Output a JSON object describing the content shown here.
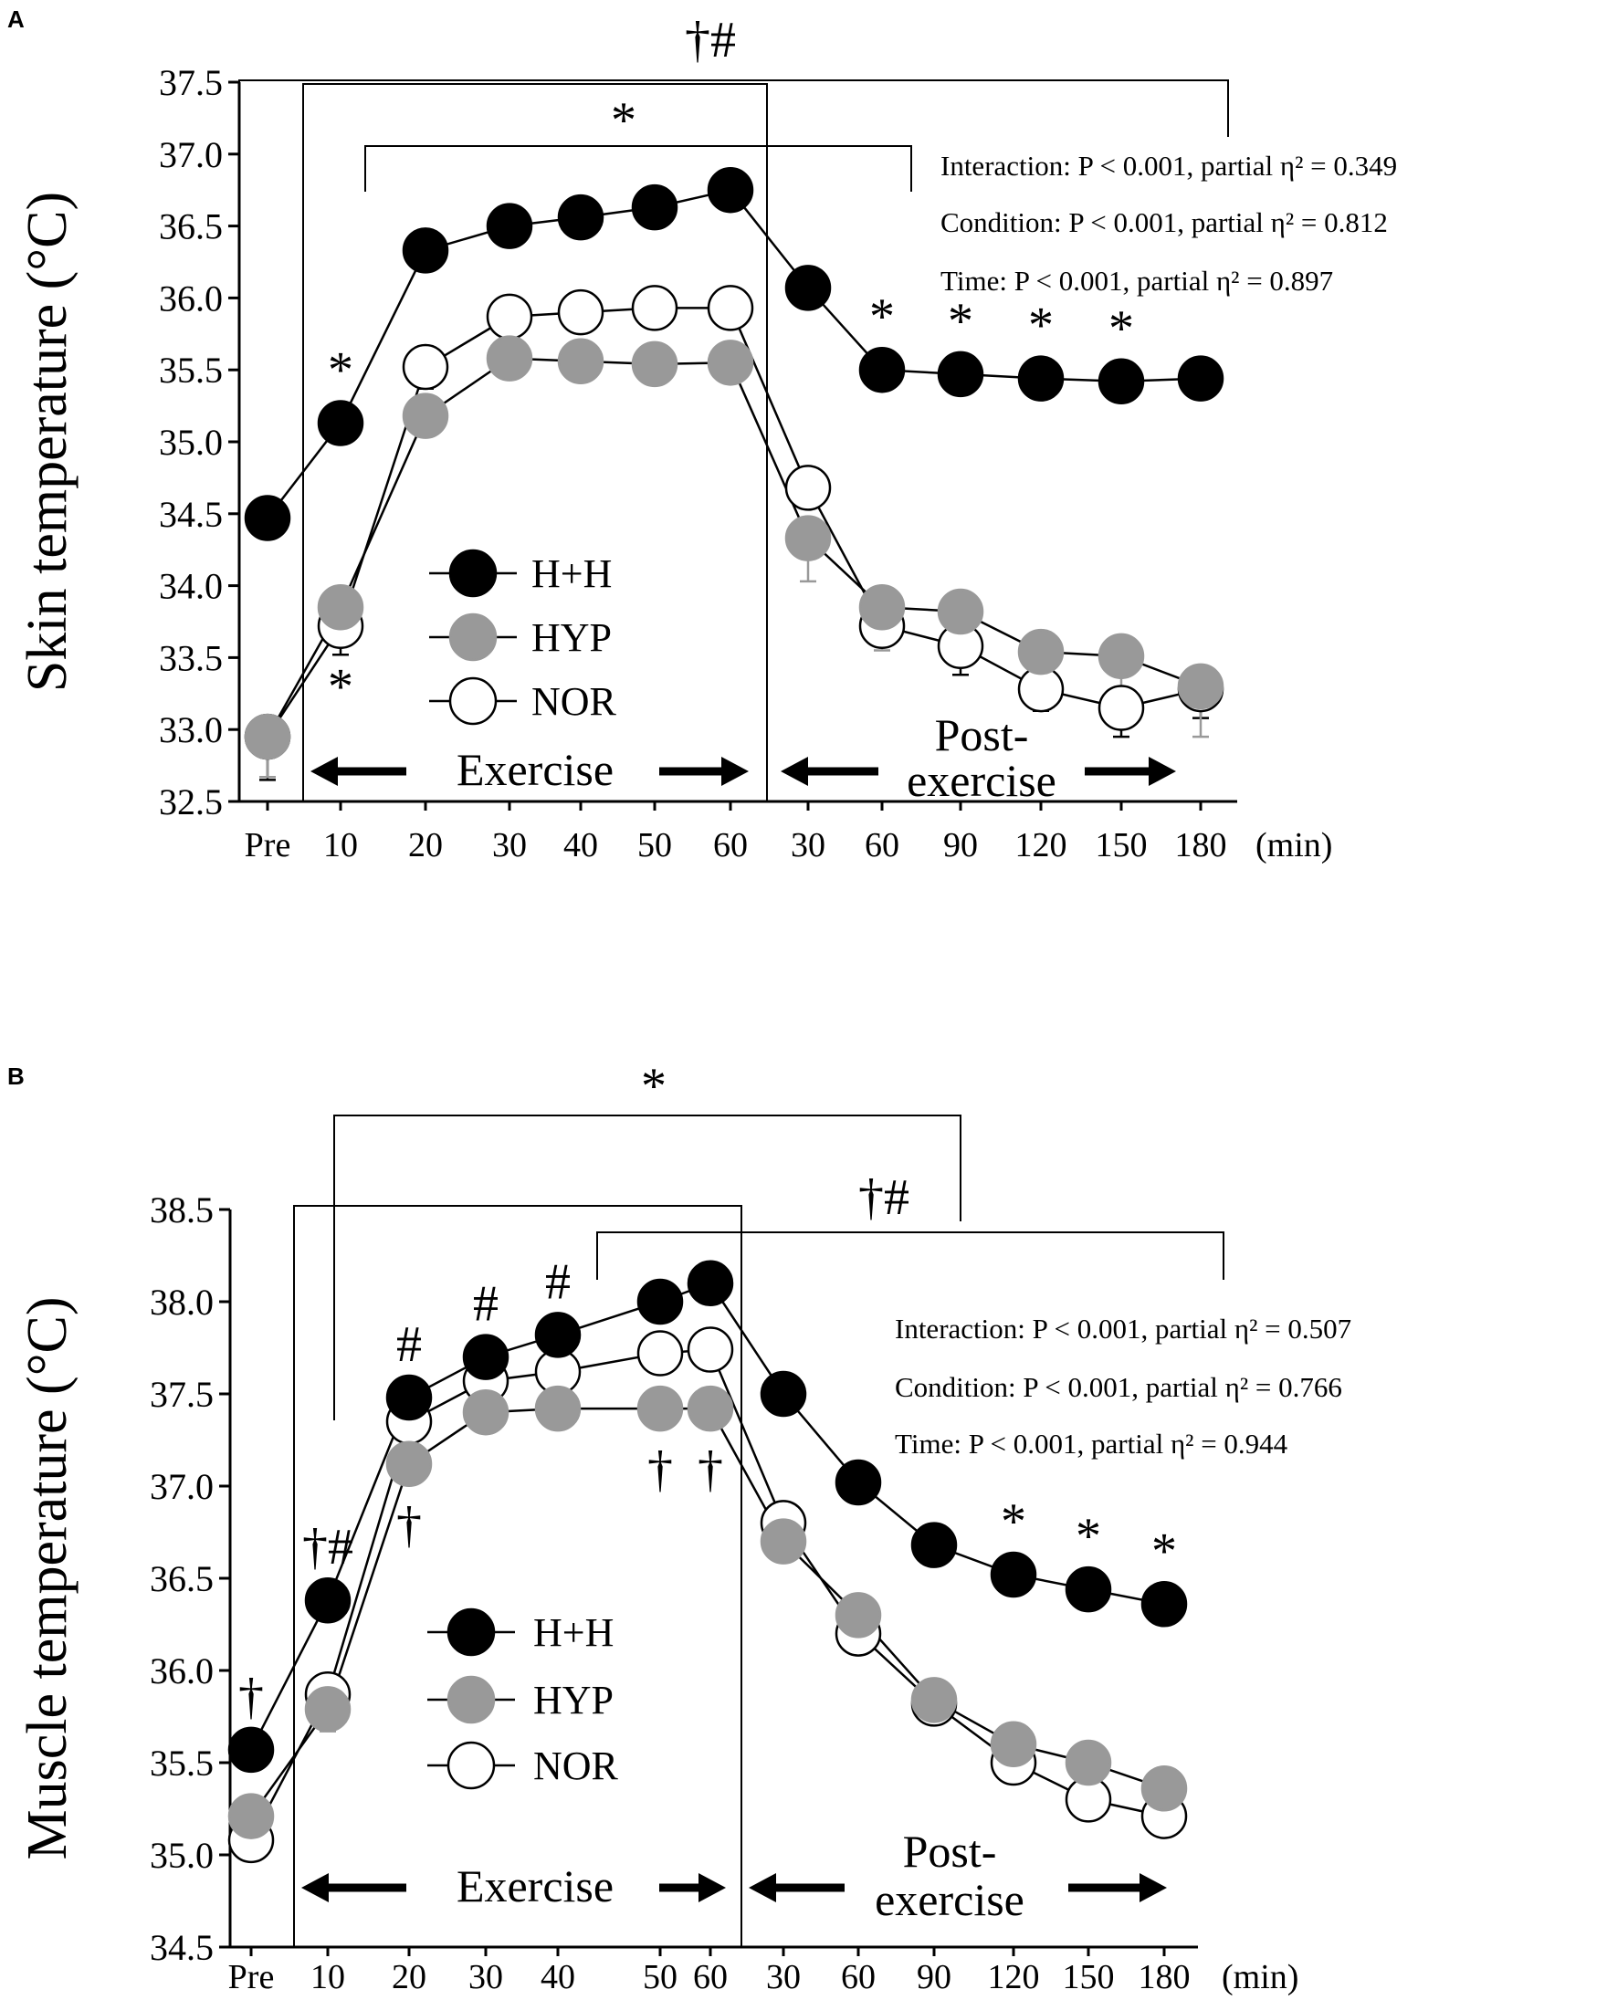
{
  "chart_data": [
    {
      "panel": "A",
      "type": "line",
      "ylabel": "Skin temperature (°C)",
      "xunit": "(min)",
      "ylim": [
        32.5,
        37.5
      ],
      "yticks": [
        "32.5",
        "33.0",
        "33.5",
        "34.0",
        "34.5",
        "35.0",
        "35.5",
        "36.0",
        "36.5",
        "37.0",
        "37.5"
      ],
      "categories": [
        "Pre",
        "10",
        "20",
        "30",
        "40",
        "50",
        "60",
        "30",
        "60",
        "90",
        "120",
        "150",
        "180"
      ],
      "series": [
        {
          "name": "H+H",
          "color": "#000000",
          "values": [
            34.47,
            35.13,
            36.33,
            36.5,
            36.56,
            36.63,
            36.75,
            36.07,
            35.5,
            35.47,
            35.44,
            35.42,
            35.44
          ],
          "err": [
            0,
            0,
            0,
            0,
            0,
            0,
            0.1,
            0.1,
            0.1,
            0,
            0,
            0,
            0
          ]
        },
        {
          "name": "NOR",
          "color": "#ffffff",
          "values": [
            32.95,
            33.72,
            35.52,
            35.87,
            35.9,
            35.93,
            35.93,
            34.68,
            33.72,
            33.58,
            33.28,
            33.15,
            33.28
          ],
          "err": [
            0.3,
            0.2,
            0.15,
            0.1,
            0.1,
            0.1,
            0.1,
            0,
            0,
            0.2,
            0.15,
            0.2,
            0.2
          ]
        },
        {
          "name": "HYP",
          "color": "#999999",
          "values": [
            32.95,
            33.85,
            35.18,
            35.58,
            35.56,
            35.54,
            35.55,
            34.33,
            33.85,
            33.82,
            33.54,
            33.51,
            33.3
          ],
          "err": [
            0.28,
            0,
            0,
            0,
            0,
            0,
            0,
            0.3,
            0.3,
            0.3,
            0.25,
            0.3,
            0.35
          ]
        }
      ],
      "legend": [
        "H+H",
        "HYP",
        "NOR"
      ],
      "phases": {
        "exercise": "Exercise",
        "post": "Post-\nexercise"
      },
      "stats": [
        "Interaction: P < 0.001, partial η² = 0.349",
        "Condition: P < 0.001, partial η² = 0.812",
        "Time: P < 0.001, partial η² = 0.897"
      ],
      "annotations": {
        "bracket_outer": "†#",
        "bracket_inner": "*",
        "points": [
          {
            "cat": 1,
            "label": "*",
            "pos": "above",
            "series": "H+H"
          },
          {
            "cat": 1,
            "label": "*",
            "pos": "below",
            "series": "NOR"
          },
          {
            "cat": 8,
            "label": "*",
            "pos": "above",
            "series": "H+H"
          },
          {
            "cat": 9,
            "label": "*",
            "pos": "above",
            "series": "H+H"
          },
          {
            "cat": 10,
            "label": "*",
            "pos": "above",
            "series": "H+H"
          },
          {
            "cat": 11,
            "label": "*",
            "pos": "above",
            "series": "H+H"
          }
        ]
      }
    },
    {
      "panel": "B",
      "type": "line",
      "ylabel": "Muscle temperature (°C)",
      "xunit": "(min)",
      "ylim": [
        34.5,
        38.5
      ],
      "yticks": [
        "34.5",
        "35.0",
        "35.5",
        "36.0",
        "36.5",
        "37.0",
        "37.5",
        "38.0",
        "38.5"
      ],
      "categories": [
        "Pre",
        "10",
        "20",
        "30",
        "40",
        "50",
        "60",
        "30",
        "60",
        "90",
        "120",
        "150",
        "180"
      ],
      "series": [
        {
          "name": "H+H",
          "color": "#000000",
          "values": [
            35.57,
            36.38,
            37.48,
            37.7,
            37.82,
            38.0,
            38.1,
            37.5,
            37.02,
            36.68,
            36.52,
            36.44,
            36.36
          ],
          "err": [
            0,
            0,
            0,
            0,
            0,
            0,
            0,
            0,
            0,
            0,
            0,
            0,
            0
          ]
        },
        {
          "name": "NOR",
          "color": "#ffffff",
          "values": [
            35.08,
            35.87,
            37.35,
            37.57,
            37.62,
            37.72,
            37.74,
            36.8,
            36.2,
            35.82,
            35.5,
            35.3,
            35.21
          ],
          "err": [
            0.1,
            0,
            0,
            0,
            0,
            0,
            0,
            0,
            0,
            0,
            0,
            0,
            0
          ]
        },
        {
          "name": "HYP",
          "color": "#999999",
          "values": [
            35.21,
            35.79,
            37.12,
            37.4,
            37.42,
            37.42,
            37.42,
            36.7,
            36.3,
            35.84,
            35.6,
            35.5,
            35.36
          ],
          "err": [
            0,
            0.12,
            0,
            0,
            0,
            0,
            0,
            0,
            0,
            0,
            0,
            0,
            0
          ]
        }
      ],
      "legend": [
        "H+H",
        "HYP",
        "NOR"
      ],
      "phases": {
        "exercise": "Exercise",
        "post": "Post-\nexercise"
      },
      "stats": [
        "Interaction: P < 0.001, partial η² = 0.507",
        "Condition: P < 0.001, partial η² = 0.766",
        "Time: P < 0.001, partial η² = 0.944"
      ],
      "annotations": {
        "bracket_outer": "*",
        "bracket_inner": "†#",
        "points": [
          {
            "cat": 0,
            "label": "†",
            "pos": "above",
            "series": "H+H"
          },
          {
            "cat": 1,
            "label": "†#",
            "pos": "above",
            "series": "H+H"
          },
          {
            "cat": 2,
            "label": "#",
            "pos": "above",
            "series": "H+H"
          },
          {
            "cat": 2,
            "label": "†",
            "pos": "below",
            "series": "HYP"
          },
          {
            "cat": 3,
            "label": "#",
            "pos": "above",
            "series": "H+H"
          },
          {
            "cat": 4,
            "label": "#",
            "pos": "above",
            "series": "H+H"
          },
          {
            "cat": 5,
            "label": "†",
            "pos": "below",
            "series": "HYP"
          },
          {
            "cat": 6,
            "label": "†",
            "pos": "below",
            "series": "HYP"
          },
          {
            "cat": 10,
            "label": "*",
            "pos": "above",
            "series": "H+H"
          },
          {
            "cat": 11,
            "label": "*",
            "pos": "above",
            "series": "H+H"
          },
          {
            "cat": 12,
            "label": "*",
            "pos": "above",
            "series": "H+H"
          }
        ]
      }
    }
  ]
}
